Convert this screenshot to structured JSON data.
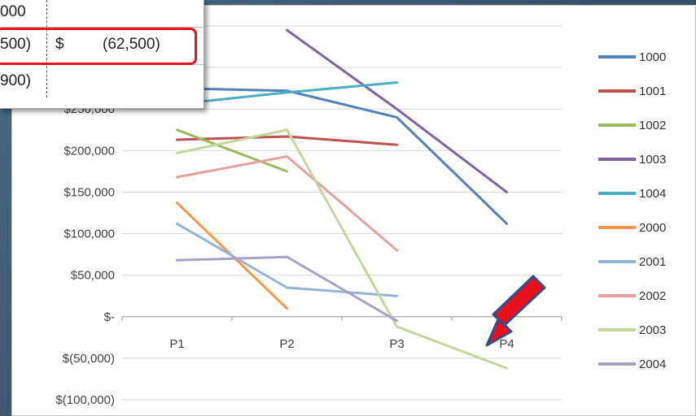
{
  "chart_data": {
    "type": "line",
    "categories": [
      "P1",
      "P2",
      "P3",
      "P4"
    ],
    "y_ticks": [
      "$250,000",
      "$200,000",
      "$150,000",
      "$100,000",
      "$50,000",
      "$-",
      "$(50,000)",
      "$(100,000)"
    ],
    "y_tick_values": [
      250000,
      200000,
      150000,
      100000,
      50000,
      0,
      -50000,
      -100000
    ],
    "ylim": [
      -100000,
      350000
    ],
    "grid": true,
    "legend_placement": "right",
    "series": [
      {
        "name": "1000",
        "color": "#4f81bd",
        "values": [
          275000,
          272000,
          240000,
          112000
        ]
      },
      {
        "name": "1001",
        "color": "#c0504d",
        "values": [
          213000,
          217000,
          207000,
          null
        ]
      },
      {
        "name": "1002",
        "color": "#9bbb59",
        "values": [
          225000,
          175000,
          null,
          null
        ]
      },
      {
        "name": "1003",
        "color": "#8064a2",
        "values": [
          null,
          345000,
          250000,
          150000
        ]
      },
      {
        "name": "1004",
        "color": "#4bacc6",
        "values": [
          256000,
          270000,
          282000,
          null
        ]
      },
      {
        "name": "2000",
        "color": "#f79646",
        "values": [
          137000,
          10000,
          null,
          null
        ]
      },
      {
        "name": "2001",
        "color": "#95b3d7",
        "values": [
          112000,
          35000,
          25000,
          null
        ]
      },
      {
        "name": "2002",
        "color": "#e6a0a0",
        "values": [
          168000,
          193000,
          80000,
          null
        ]
      },
      {
        "name": "2003",
        "color": "#c3d69b",
        "values": [
          197000,
          225000,
          -12000,
          -62000
        ]
      },
      {
        "name": "2004",
        "color": "#a9a0c8",
        "values": [
          68000,
          72000,
          -5000,
          null
        ]
      }
    ]
  },
  "overlay_table": {
    "row1_col1": "000",
    "row2_col1": "500)",
    "row2_col2_symbol": "$",
    "row2_col2_value": "(62,500)",
    "row3_col1": "900)"
  },
  "colors": {
    "highlight": "#e8101a",
    "arrow_fill": "#e8101a",
    "arrow_stroke": "#2f4f8f"
  },
  "arrow_icon": "down-left-arrow-icon"
}
